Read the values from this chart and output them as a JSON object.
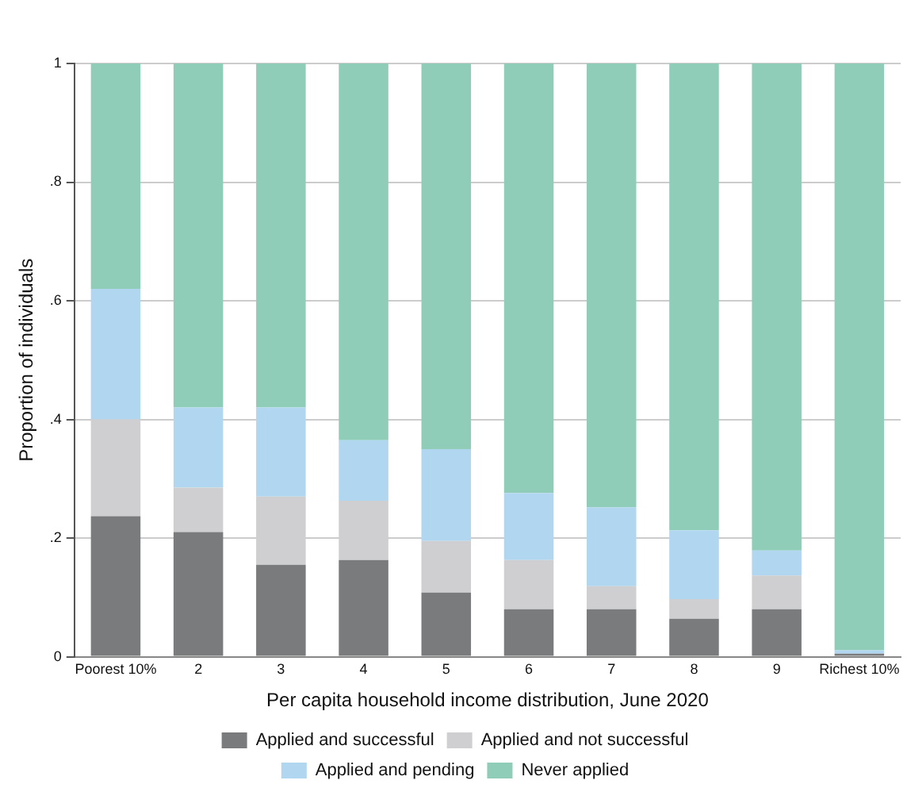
{
  "chart_data": {
    "type": "bar",
    "stacked": true,
    "xlabel": "Per capita household income distribution, June 2020",
    "ylabel": "Proportion of individuals",
    "categories": [
      "Poorest 10%",
      "2",
      "3",
      "4",
      "5",
      "6",
      "7",
      "8",
      "9",
      "Richest 10%"
    ],
    "series": [
      {
        "name": "Applied and successful",
        "color": "#7a7b7d",
        "values": [
          0.237,
          0.21,
          0.155,
          0.163,
          0.108,
          0.08,
          0.08,
          0.064,
          0.08,
          0.005
        ]
      },
      {
        "name": "Applied and not successful",
        "color": "#cfcfd1",
        "values": [
          0.163,
          0.075,
          0.115,
          0.1,
          0.087,
          0.083,
          0.039,
          0.033,
          0.057,
          null
        ]
      },
      {
        "name": "Applied and pending",
        "color": "#b1d6ef",
        "values": [
          0.22,
          0.135,
          0.15,
          0.102,
          0.155,
          0.113,
          0.133,
          0.116,
          0.042,
          0.006
        ]
      },
      {
        "name": "Never applied",
        "color": "#8fcdb9",
        "values": [
          0.38,
          0.58,
          0.58,
          0.635,
          0.65,
          0.724,
          0.748,
          0.787,
          0.821,
          0.989
        ]
      }
    ],
    "ylim": [
      0,
      1
    ],
    "yticks": [
      0,
      {
        "value": 0.2,
        "label": ".2"
      },
      {
        "value": 0.4,
        "label": ".4"
      },
      {
        "value": 0.6,
        "label": ".6"
      },
      {
        "value": 0.8,
        "label": ".8"
      },
      1
    ],
    "grid": "y",
    "legend": "bottom"
  }
}
